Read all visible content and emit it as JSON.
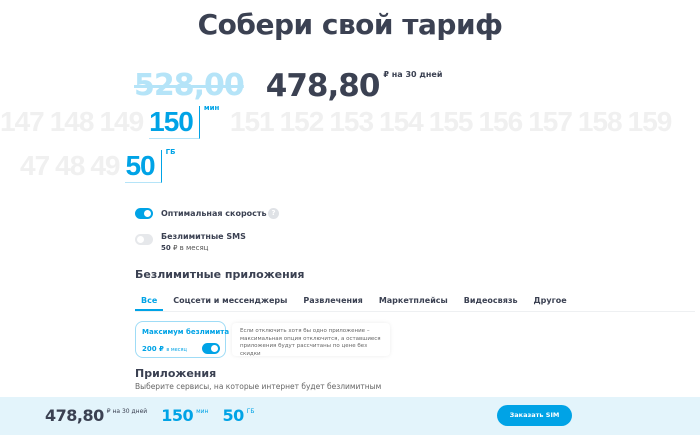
{
  "title": "Собери свой тариф",
  "price": {
    "old": "528,00",
    "new": "478,80",
    "per": "₽ на 30 дней"
  },
  "minutes": {
    "before": [
      "147",
      "148",
      "149"
    ],
    "value": "150",
    "after": [
      "151",
      "152",
      "153",
      "154",
      "155",
      "156",
      "157",
      "158",
      "159"
    ],
    "unit": "мин"
  },
  "gb": {
    "before": [
      "47",
      "48",
      "49"
    ],
    "value": "50",
    "unit": "ГБ"
  },
  "options": [
    {
      "label": "Оптимальная скорость",
      "enabled": true,
      "help_icon": "?"
    },
    {
      "label": "Безлимитные SMS",
      "enabled": false,
      "price": "50",
      "price_suffix": "₽ в месяц"
    }
  ],
  "apps": {
    "heading": "Безлимитные приложения",
    "tabs": [
      "Все",
      "Соцсети и мессенджеры",
      "Развлечения",
      "Маркетплейсы",
      "Видеосвязь",
      "Другое"
    ],
    "active_tab": "Все",
    "max": {
      "title": "Максимум безлимита",
      "price": "200 ₽",
      "price_suffix": "в месяц",
      "enabled": true
    },
    "note": "Если отключить хотя бы одно приложение – максимальная опция отключится, а оставшиеся приложения будут рассчитаны по цене без скидки",
    "list_heading": "Приложения",
    "list_sub": "Выберите сервисы, на которые интернет будет безлимитным"
  },
  "footer": {
    "price": "478,80",
    "per": "₽ на 30 дней",
    "minutes": "150",
    "minutes_unit": "мин",
    "gb": "50",
    "gb_unit": "ГБ",
    "order_label": "Заказать SIM"
  },
  "colors": {
    "accent": "#00a3e6",
    "text": "#3b4152",
    "footer_bg": "#e3f4fb"
  }
}
